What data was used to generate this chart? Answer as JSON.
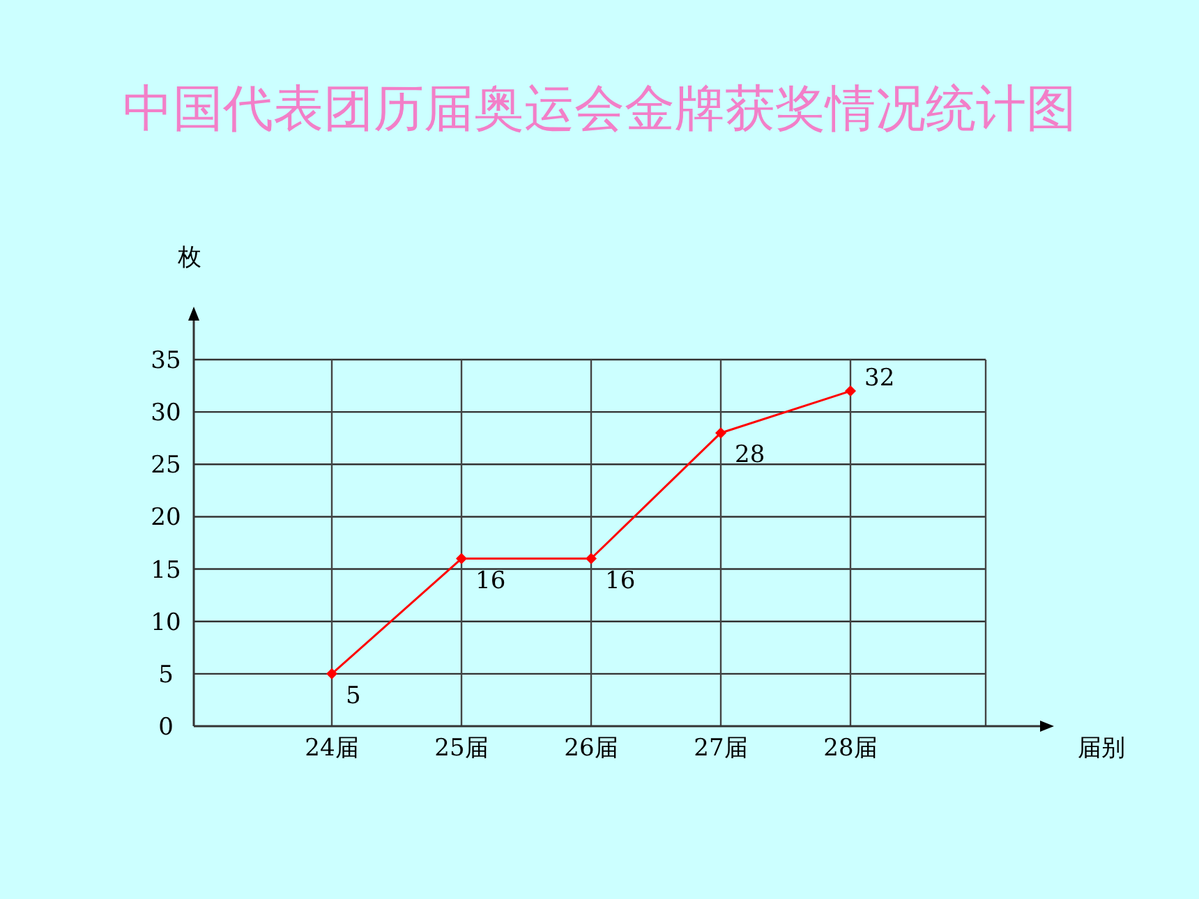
{
  "chart_data": {
    "type": "line",
    "title": "中国代表团历届奥运会金牌获奖情况统计图",
    "xlabel": "届别",
    "ylabel": "枚",
    "categories": [
      "24届",
      "25届",
      "26届",
      "27届",
      "28届"
    ],
    "values": [
      5,
      16,
      16,
      28,
      32
    ],
    "color": "#ff0000",
    "ylim": [
      0,
      35
    ],
    "yticks": [
      0,
      5,
      10,
      15,
      20,
      25,
      30,
      35
    ],
    "grid": true,
    "data_labels": true,
    "marker": "diamond",
    "line_style": "solid"
  }
}
